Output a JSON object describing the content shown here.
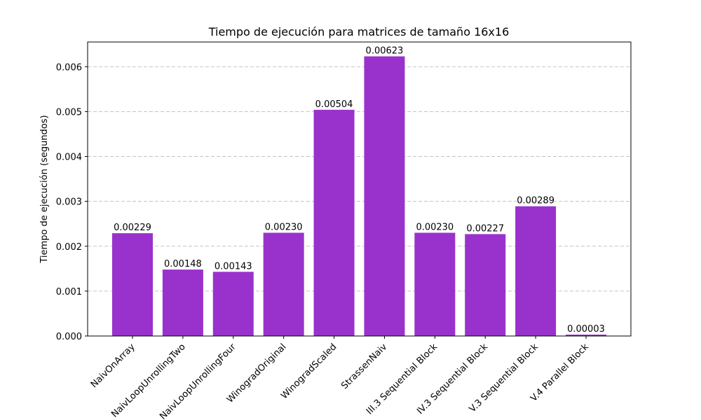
{
  "chart_data": {
    "type": "bar",
    "title": "Tiempo de ejecución para matrices de tamaño 16x16",
    "xlabel": "",
    "ylabel": "Tiempo de ejecución (segundos)",
    "categories": [
      "NaivOnArray",
      "NaivLoopUnrollingTwo",
      "NaivLoopUnrollingFour",
      "WinogradOriginal",
      "WinogradScaled",
      "StrassenNaiv",
      "III.3 Sequential Block",
      "IV.3 Sequential Block",
      "V.3 Sequential Block",
      "V.4 Parallel Block"
    ],
    "values": [
      0.00229,
      0.00148,
      0.00143,
      0.0023,
      0.00504,
      0.00623,
      0.0023,
      0.00227,
      0.00289,
      3e-05
    ],
    "value_labels": [
      "0.00229",
      "0.00148",
      "0.00143",
      "0.00230",
      "0.00504",
      "0.00623",
      "0.00230",
      "0.00227",
      "0.00289",
      "0.00003"
    ],
    "ylim": [
      0,
      0.00655
    ],
    "yticks": [
      0.0,
      0.001,
      0.002,
      0.003,
      0.004,
      0.005,
      0.006
    ],
    "ytick_labels": [
      "0.000",
      "0.001",
      "0.002",
      "0.003",
      "0.004",
      "0.005",
      "0.006"
    ],
    "grid": "y-dashed",
    "bar_color": "#9932CC"
  }
}
